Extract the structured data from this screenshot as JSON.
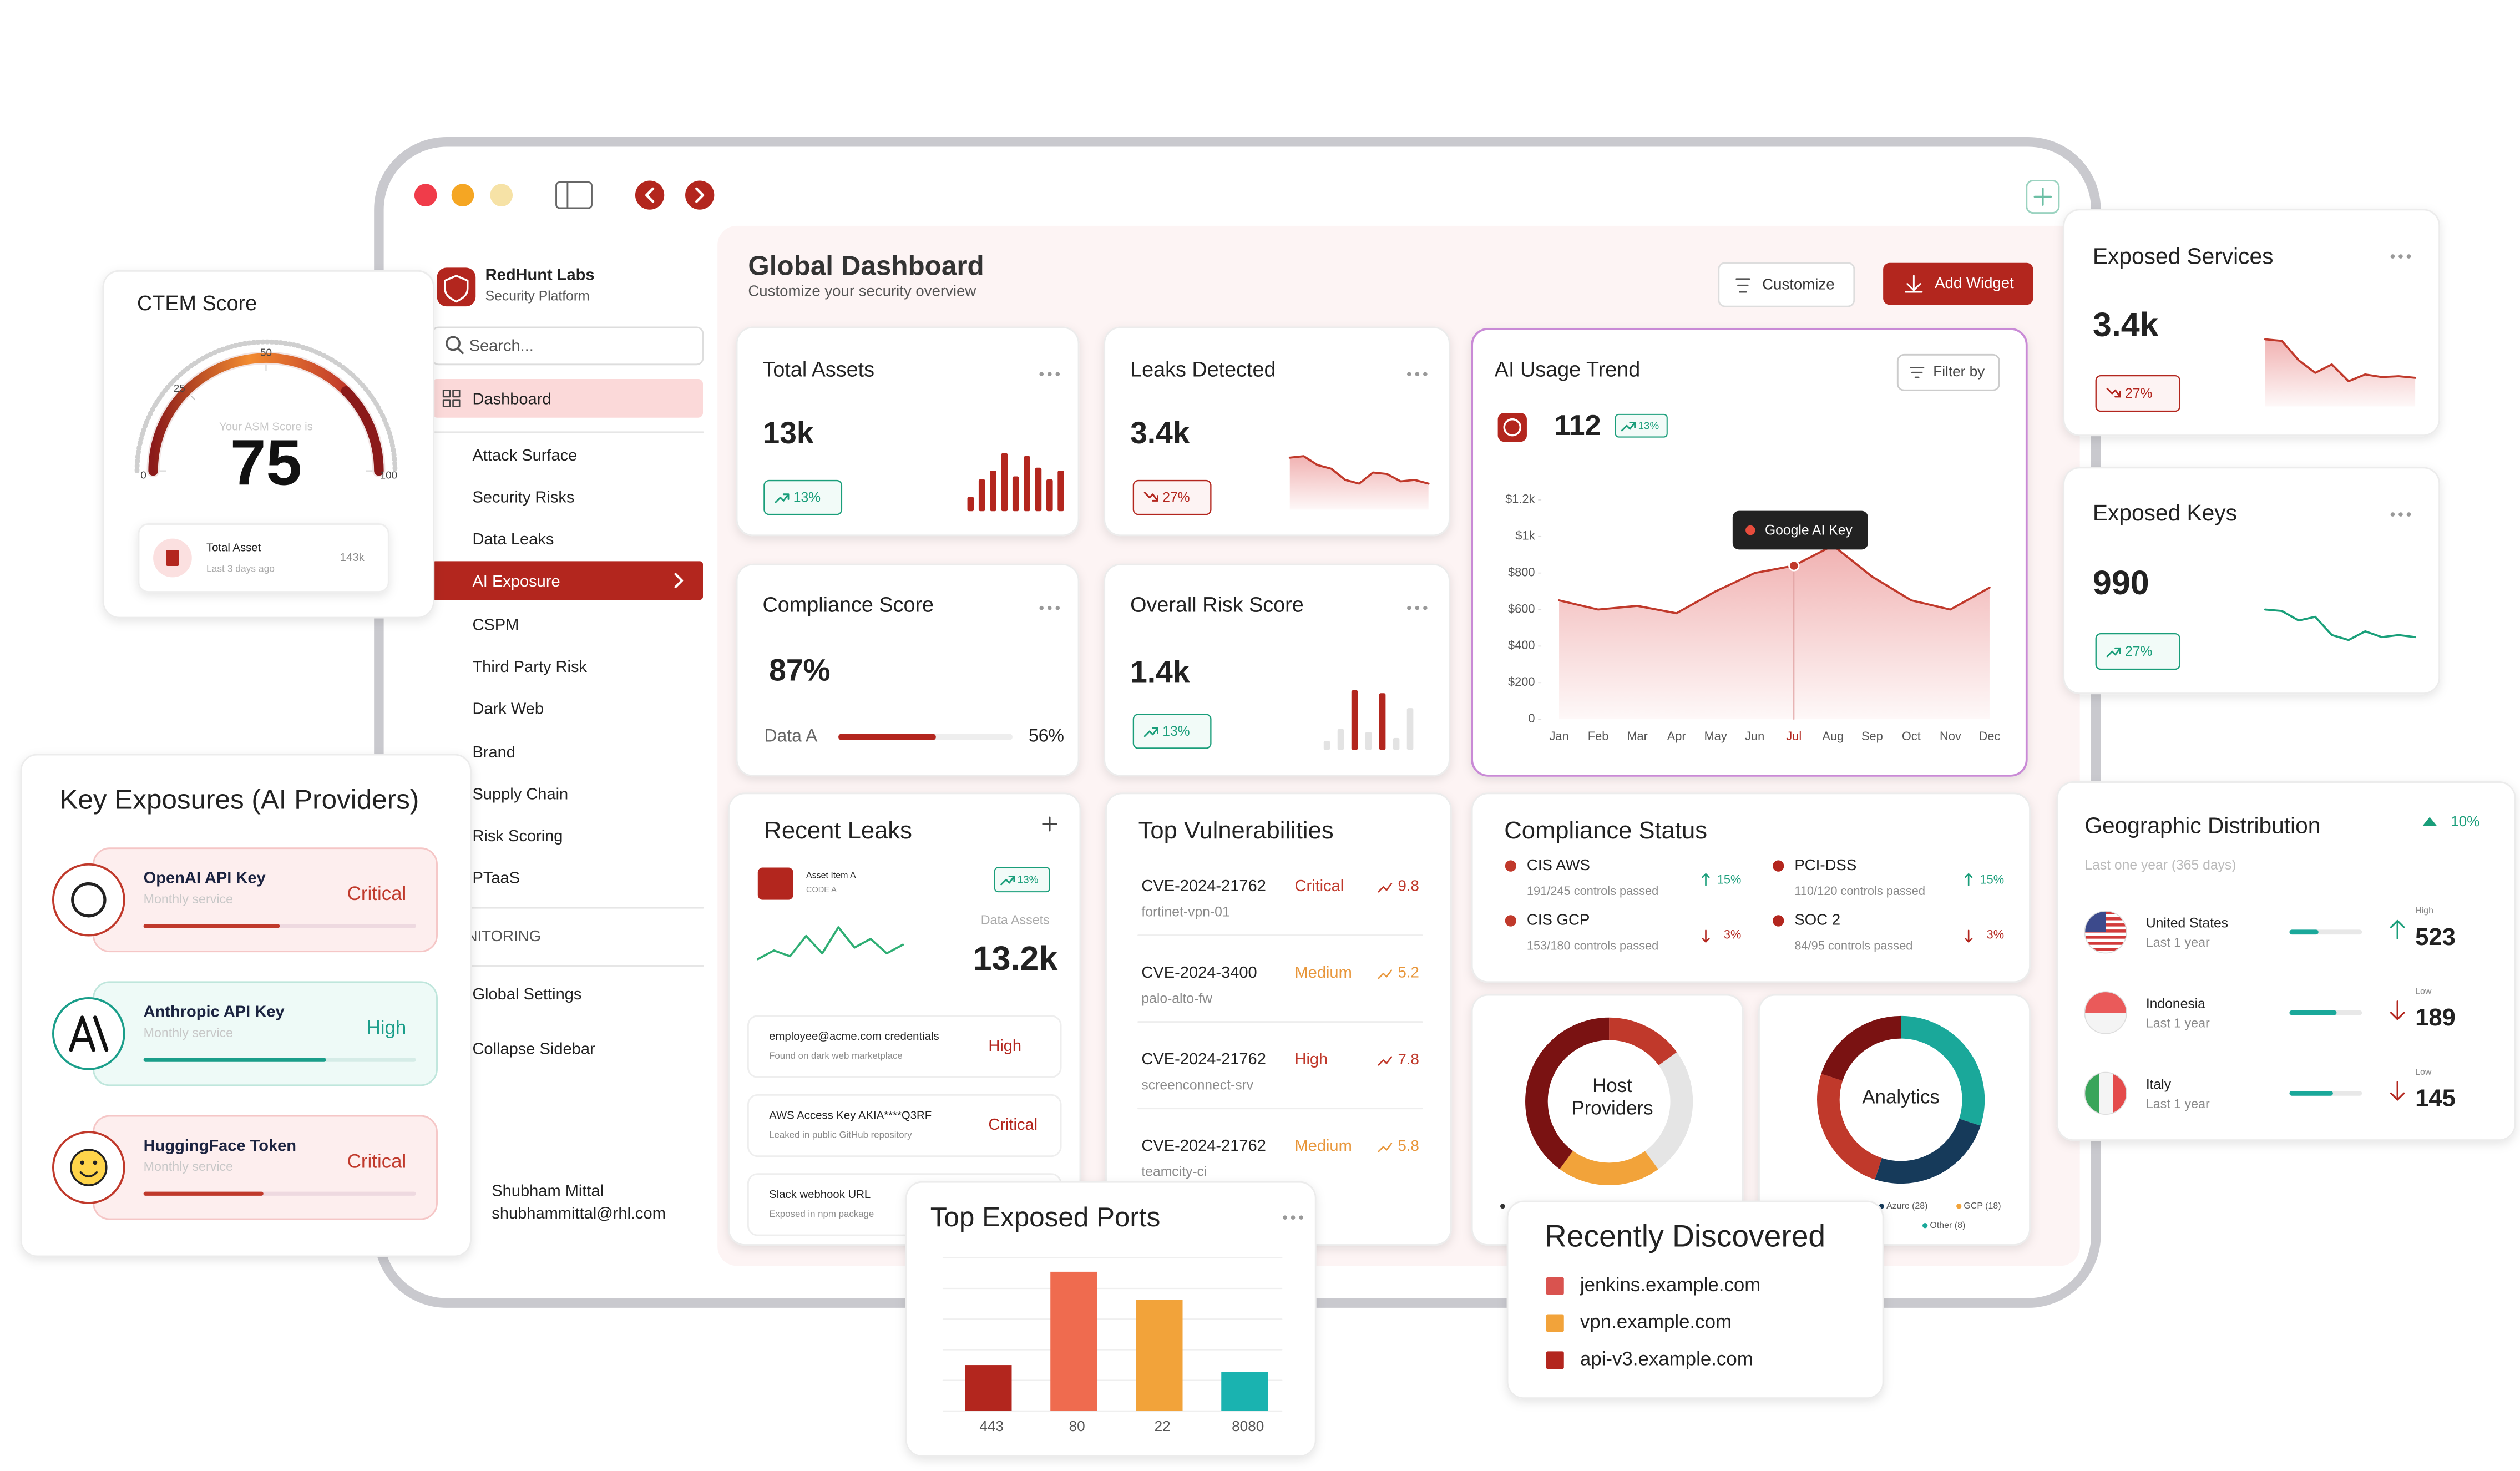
{
  "sidebar": {
    "brand": "RedHunt Labs",
    "tagline": "Security Platform",
    "search_placeholder": "Search...",
    "nav": [
      "Dashboard",
      "Attack Surface",
      "Security Risks",
      "Data Leaks",
      "AI Exposure",
      "CSPM",
      "Third Party Risk",
      "Dark Web",
      "Brand",
      "Supply Chain",
      "Risk Scoring",
      "PTaaS"
    ],
    "selected_index": 0,
    "active_index": 4,
    "section": "MONITORING",
    "settings_nav": [
      "Global Settings",
      "Collapse Sidebar"
    ],
    "user": {
      "name": "Shubham Mittal",
      "email": "shubhammittal@rhl.com"
    }
  },
  "header": {
    "title": "Global Dashboard",
    "subtitle": "Customize your security overview",
    "buttons": [
      "Customize",
      "Add Widget"
    ]
  },
  "total_assets": {
    "title": "Total Assets",
    "value": "13k",
    "change": "13%",
    "direction": "up",
    "bars": [
      25,
      55,
      70,
      100,
      60,
      95,
      75,
      55,
      70
    ]
  },
  "leaks_detected": {
    "title": "Leaks Detected",
    "value": "3.4k",
    "change": "27%",
    "direction": "down",
    "trend": [
      70,
      72,
      60,
      55,
      40,
      35,
      50,
      48,
      38,
      40,
      35
    ]
  },
  "compliance_score": {
    "title": "Compliance Score",
    "value": "87%",
    "label": "Data A",
    "progress": 56,
    "progress_label": "56%"
  },
  "overall_risk": {
    "title": "Overall Risk Score",
    "value": "1.4k",
    "change": "13%",
    "direction": "up",
    "bars": [
      15,
      35,
      100,
      30,
      95,
      20,
      70
    ],
    "highlight": [
      2,
      4
    ]
  },
  "ai_usage": {
    "type": "line",
    "title": "AI Usage Trend",
    "value": "112",
    "change": "13%",
    "filter": "Filter by",
    "categories": [
      "Jan",
      "Feb",
      "Mar",
      "Apr",
      "May",
      "Jun",
      "Jul",
      "Aug",
      "Sep",
      "Oct",
      "Nov",
      "Dec"
    ],
    "values": [
      650,
      600,
      620,
      580,
      700,
      800,
      840,
      950,
      780,
      650,
      600,
      720
    ],
    "ylim": [
      0,
      1200
    ],
    "yticks": [
      0,
      {
        "value": 200,
        "label": "$200"
      },
      {
        "value": 400,
        "label": "$400"
      },
      {
        "value": 600,
        "label": "$600"
      },
      {
        "value": 800,
        "label": "$800"
      },
      {
        "value": 1000,
        "label": "$1k"
      },
      {
        "value": 1200,
        "label": "$1.2k"
      }
    ],
    "highlight_index": 6,
    "annotation": "Google AI Key",
    "color": "#c0392b"
  },
  "recent_leaks": {
    "title": "Recent Leaks",
    "asset": "Asset Item A",
    "code": "CODE A",
    "change": "13%",
    "metric_label": "Data Assets",
    "metric_value": "13.2k",
    "trend": [
      20,
      35,
      25,
      60,
      30,
      75,
      40,
      55,
      30,
      45
    ],
    "items": [
      {
        "title": "employee@acme.com credentials",
        "desc": "Found on dark web marketplace",
        "severity": "High"
      },
      {
        "title": "AWS Access Key AKIA****Q3RF",
        "desc": "Leaked in public GitHub repository",
        "severity": "Critical"
      },
      {
        "title": "Slack webhook URL",
        "desc": "Exposed in npm package"
      }
    ]
  },
  "top_vulnerabilities": {
    "title": "Top Vulnerabilities",
    "rows": [
      {
        "cve": "CVE-2024-21762",
        "host": "fortinet-vpn-01",
        "severity": "Critical",
        "score": 9.8
      },
      {
        "cve": "CVE-2024-3400",
        "host": "palo-alto-fw",
        "severity": "Medium",
        "score": 5.2
      },
      {
        "cve": "CVE-2024-21762",
        "host": "screenconnect-srv",
        "severity": "High",
        "score": 7.8
      },
      {
        "cve": "CVE-2024-21762",
        "host": "teamcity-ci",
        "severity": "Medium",
        "score": 5.8
      }
    ]
  },
  "compliance_status": {
    "title": "Compliance Status",
    "items": [
      {
        "name": "CIS AWS",
        "detail": "191/245 controls passed",
        "change": "15%",
        "direction": "up"
      },
      {
        "name": "PCI-DSS",
        "detail": "110/120 controls passed",
        "change": "15%",
        "direction": "up"
      },
      {
        "name": "CIS GCP",
        "detail": "153/180 controls passed",
        "change": "3%",
        "direction": "down"
      },
      {
        "name": "SOC 2",
        "detail": "84/95 controls passed",
        "change": "3%",
        "direction": "down"
      }
    ]
  },
  "host_providers": {
    "type": "donut",
    "label_lines": [
      "Host",
      "Providers"
    ],
    "values": [
      15,
      25,
      20,
      40
    ],
    "colors": [
      "#c0392b",
      "#e5e5e5",
      "#f2a33a",
      "#7a1212"
    ]
  },
  "analytics": {
    "type": "donut",
    "label": "Analytics",
    "values": [
      30,
      25,
      25,
      20
    ],
    "colors": [
      "#1aa89a",
      "#163a5a",
      "#c0392b",
      "#7a1212"
    ],
    "legend": [
      {
        "name": "Azure (28)",
        "color": "#163a5a"
      },
      {
        "name": "GCP (18)",
        "color": "#f2a33a"
      },
      {
        "name": "Other (8)",
        "color": "#1aa89a"
      }
    ]
  },
  "recently_discovered": {
    "title": "Recently Discovered",
    "items": [
      {
        "name": "jenkins.example.com",
        "color": "#d9534f"
      },
      {
        "name": "vpn.example.com",
        "color": "#f2a33a"
      },
      {
        "name": "api-v3.example.com",
        "color": "#b3261e"
      }
    ]
  },
  "top_exposed_ports": {
    "type": "bar",
    "title": "Top Exposed Ports",
    "categories": [
      "443",
      "80",
      "22",
      "8080"
    ],
    "values": [
      33,
      100,
      80,
      28
    ],
    "ylim": [
      0,
      110
    ],
    "colors": [
      "#b3261e",
      "#ef6b4f",
      "#f2a33a",
      "#1ab3b0"
    ]
  },
  "exposed_services": {
    "title": "Exposed Services",
    "value": "3.4k",
    "change": "27%",
    "direction": "down",
    "trend": [
      80,
      78,
      55,
      40,
      50,
      30,
      38,
      35,
      36,
      34
    ]
  },
  "exposed_keys": {
    "title": "Exposed Keys",
    "value": "990",
    "change": "27%",
    "direction": "up",
    "trend": [
      60,
      58,
      45,
      50,
      25,
      18,
      30,
      22,
      25,
      22
    ]
  },
  "geo": {
    "title": "Geographic Distribution",
    "change": "10%",
    "subtitle": "Last one year (365 days)",
    "rows": [
      {
        "country": "United States",
        "period": "Last 1 year",
        "level": "High",
        "value": 523,
        "progress": 40,
        "direction": "up"
      },
      {
        "country": "Indonesia",
        "period": "Last 1 year",
        "level": "Low",
        "value": 189,
        "progress": 65,
        "direction": "down"
      },
      {
        "country": "Italy",
        "period": "Last 1 year",
        "level": "Low",
        "value": 145,
        "progress": 60,
        "direction": "down"
      }
    ]
  },
  "ctem": {
    "title": "CTEM Score",
    "caption": "Your ASM Score is",
    "score": 75,
    "ticks": [
      0,
      25,
      50,
      100
    ],
    "range": [
      0,
      100
    ],
    "asset_title": "Total Asset",
    "asset_time": "Last 3 days ago",
    "asset_value": "143k"
  },
  "key_exposures": {
    "title": "Key Exposures (AI Providers)",
    "items": [
      {
        "name": "OpenAI API Key",
        "period": "Monthly service",
        "severity": "Critical",
        "progress": 50
      },
      {
        "name": "Anthropic API Key",
        "period": "Monthly service",
        "severity": "High",
        "progress": 67
      },
      {
        "name": "HuggingFace Token",
        "period": "Monthly service",
        "severity": "Critical",
        "progress": 44
      }
    ]
  }
}
